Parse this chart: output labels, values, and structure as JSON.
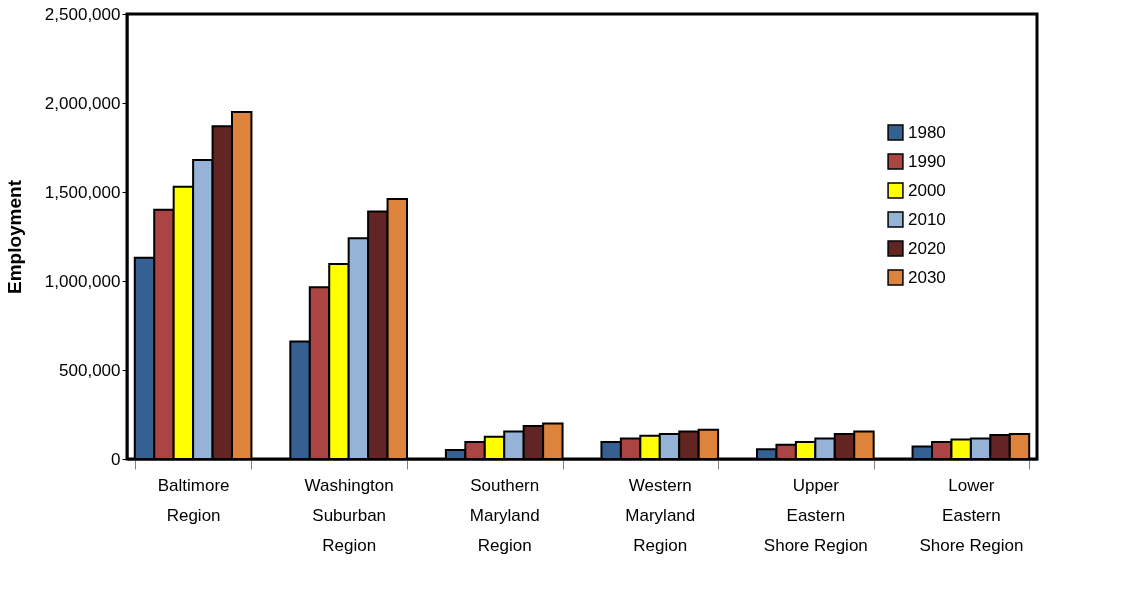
{
  "chart_data": {
    "type": "bar",
    "ylabel": "Employment",
    "categories": [
      "Baltimore\nRegion",
      "Washington\nSuburban\nRegion",
      "Southern\nMaryland\nRegion",
      "Western\nMaryland\nRegion",
      "Upper\nEastern\nShore Region",
      "Lower\nEastern\nShore Region"
    ],
    "series": [
      {
        "name": "1980",
        "color": "#376092",
        "values": [
          1130000,
          660000,
          50000,
          95000,
          55000,
          70000
        ]
      },
      {
        "name": "1990",
        "color": "#ab4544",
        "values": [
          1400000,
          965000,
          95000,
          115000,
          80000,
          95000
        ]
      },
      {
        "name": "2000",
        "color": "#ffff00",
        "values": [
          1530000,
          1095000,
          125000,
          130000,
          95000,
          110000
        ]
      },
      {
        "name": "2010",
        "color": "#95b3d7",
        "values": [
          1680000,
          1240000,
          155000,
          140000,
          115000,
          115000
        ]
      },
      {
        "name": "2020",
        "color": "#632523",
        "values": [
          1870000,
          1390000,
          185000,
          155000,
          140000,
          135000
        ]
      },
      {
        "name": "2030",
        "color": "#dd833b",
        "values": [
          1950000,
          1460000,
          200000,
          165000,
          155000,
          140000
        ]
      }
    ],
    "ylim": [
      0,
      2500000
    ],
    "yticks": [
      0,
      {
        "value": 500000,
        "label": "500,000"
      },
      {
        "value": 1000000,
        "label": "1,000,000"
      },
      {
        "value": 1500000,
        "label": "1,500,000"
      },
      {
        "value": 2000000,
        "label": "2,000,000"
      },
      {
        "value": 2500000,
        "label": "2,500,000"
      }
    ],
    "grid": false,
    "legend": "right"
  }
}
